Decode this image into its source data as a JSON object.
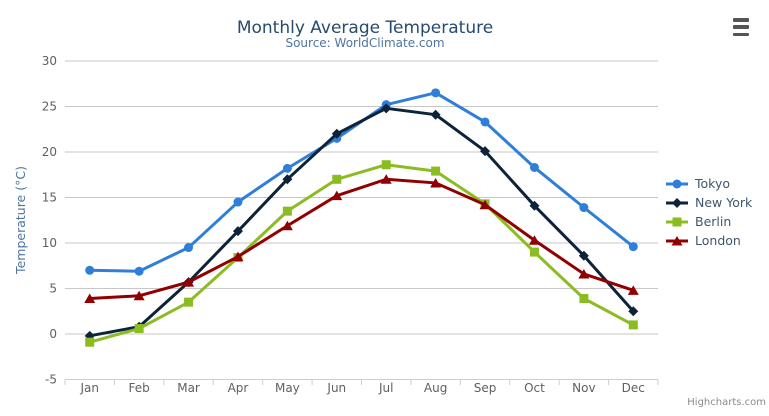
{
  "credit": "Highcharts.com",
  "menu": {
    "icon": "hamburger-menu"
  },
  "colors": {
    "background": "#ffffff",
    "grid": "#c7c7c7",
    "axis_line": "#c0d0e0",
    "tick_mark": "#c0d0e0",
    "title_text": "#274b6d",
    "subtitle_text": "#4d759e",
    "axis_title_text": "#4d759e",
    "tick_label_text": "#606060",
    "legend_text": "#3e576f",
    "credit_text": "#8a8a8a",
    "menu_icon": "#555555"
  },
  "chart_data": {
    "type": "line",
    "title": "Monthly Average Temperature",
    "subtitle": "Source: WorldClimate.com",
    "xlabel": "",
    "ylabel": "Temperature (°C)",
    "categories": [
      "Jan",
      "Feb",
      "Mar",
      "Apr",
      "May",
      "Jun",
      "Jul",
      "Aug",
      "Sep",
      "Oct",
      "Nov",
      "Dec"
    ],
    "ylim": [
      -5,
      30
    ],
    "ytick_step": 5,
    "grid": true,
    "legend_position": "right-middle",
    "series": [
      {
        "name": "Tokyo",
        "color": "#2f7ed8",
        "marker": "circle",
        "values": [
          7.0,
          6.9,
          9.5,
          14.5,
          18.2,
          21.5,
          25.2,
          26.5,
          23.3,
          18.3,
          13.9,
          9.6
        ]
      },
      {
        "name": "New York",
        "color": "#0d233a",
        "marker": "diamond",
        "values": [
          -0.2,
          0.8,
          5.7,
          11.3,
          17.0,
          22.0,
          24.8,
          24.1,
          20.1,
          14.1,
          8.6,
          2.5
        ]
      },
      {
        "name": "Berlin",
        "color": "#8bbc21",
        "marker": "square",
        "values": [
          -0.9,
          0.6,
          3.5,
          8.4,
          13.5,
          17.0,
          18.6,
          17.9,
          14.3,
          9.0,
          3.9,
          1.0
        ]
      },
      {
        "name": "London",
        "color": "#910000",
        "marker": "triangle",
        "values": [
          3.9,
          4.2,
          5.7,
          8.5,
          11.9,
          15.2,
          17.0,
          16.6,
          14.2,
          10.3,
          6.6,
          4.8
        ]
      }
    ]
  }
}
